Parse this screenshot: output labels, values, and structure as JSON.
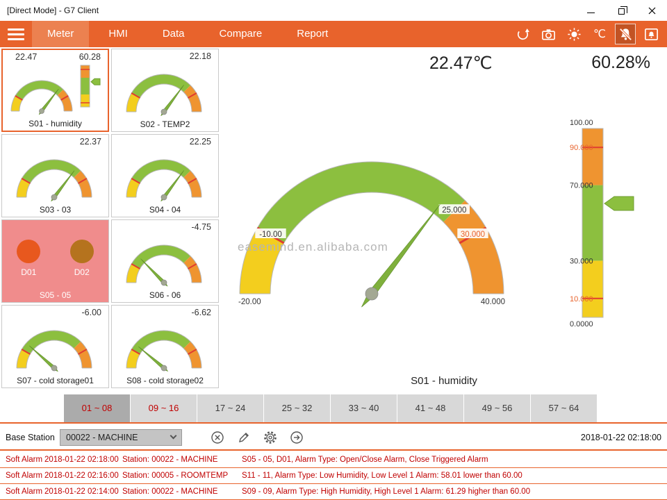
{
  "window": {
    "title": "[Direct Mode] - G7 Client"
  },
  "nav": {
    "tabs": [
      {
        "label": "Meter",
        "active": true
      },
      {
        "label": "HMI",
        "active": false
      },
      {
        "label": "Data",
        "active": false
      },
      {
        "label": "Compare",
        "active": false
      },
      {
        "label": "Report",
        "active": false
      }
    ],
    "celsius_label": "℃"
  },
  "colors": {
    "accent": "#E8632C",
    "gauge_green": "#8CBF3F",
    "gauge_yellow": "#F3CE1E",
    "gauge_orange": "#EF9430",
    "alarm_line": "#E03C31",
    "alarm_text": "#C00000"
  },
  "gauge_defaults": {
    "dial": {
      "min": -20,
      "max": 40,
      "segments": [
        {
          "from": -20,
          "to": -10,
          "color": "#F3CE1E"
        },
        {
          "from": -10,
          "to": 25,
          "color": "#8CBF3F"
        },
        {
          "from": 25,
          "to": 40,
          "color": "#EF9430"
        }
      ],
      "ticks": [
        -10,
        30
      ],
      "tick_color": "#E03C31",
      "needle_color": "#7FB03C",
      "needle_edge": "#5E8C2A",
      "hub_color": "#A3A893"
    },
    "bar": {
      "min": 0,
      "max": 100,
      "segments": [
        {
          "from": 0,
          "to": 30,
          "color": "#F3CE1E"
        },
        {
          "from": 30,
          "to": 70,
          "color": "#8CBF3F"
        },
        {
          "from": 70,
          "to": 100,
          "color": "#EF9430"
        }
      ],
      "ticks": [
        10,
        90
      ],
      "tick_color": "#E03C31",
      "pointer_color": "#8CBF3F",
      "pointer_edge": "#6F9E33"
    }
  },
  "meters": [
    {
      "id": "S01",
      "label": "S01 - humidity",
      "type": "dial-bar",
      "values": [
        "22.47",
        "60.28"
      ],
      "dial_value": 22.47,
      "bar_value": 60.28,
      "selected": true
    },
    {
      "id": "S02",
      "label": "S02 - TEMP2",
      "type": "dial",
      "values": [
        "22.18"
      ],
      "dial_value": 22.18,
      "selected": false
    },
    {
      "id": "S03",
      "label": "S03 - 03",
      "type": "dial",
      "values": [
        "22.37"
      ],
      "dial_value": 22.37,
      "selected": false
    },
    {
      "id": "S04",
      "label": "S04 - 04",
      "type": "dial",
      "values": [
        "22.25"
      ],
      "dial_value": 22.25,
      "selected": false
    },
    {
      "id": "S05",
      "label": "S05 - 05",
      "type": "digital",
      "background": "#F08C8C",
      "channels": [
        {
          "label": "D01",
          "color": "#E8581E"
        },
        {
          "label": "D02",
          "color": "#B5731E"
        }
      ],
      "selected": false
    },
    {
      "id": "S06",
      "label": "S06 - 06",
      "type": "dial",
      "values": [
        "-4.75"
      ],
      "dial_value": -4.75,
      "selected": false
    },
    {
      "id": "S07",
      "label": "S07 - cold storage01",
      "type": "dial",
      "values": [
        "-6.00"
      ],
      "dial_value": -6.0,
      "selected": false
    },
    {
      "id": "S08",
      "label": "S08 - cold storage02",
      "type": "dial",
      "values": [
        "-6.62"
      ],
      "dial_value": -6.62,
      "selected": false
    }
  ],
  "main": {
    "temp_display": "22.47℃",
    "humidity_display": "60.28%",
    "meter_label": "S01 - humidity",
    "watermark": "easemind.en.alibaba.com",
    "dial": {
      "value": 22.47,
      "labels": [
        {
          "v": -20,
          "text": "-20.00",
          "place": "end-left",
          "color": "#333333"
        },
        {
          "v": -10,
          "text": "-10.00",
          "place": "band",
          "color": "#333333"
        },
        {
          "v": 25,
          "text": "25.000",
          "place": "band",
          "color": "#333333"
        },
        {
          "v": 30,
          "text": "30.000",
          "place": "band",
          "color": "#E8632C"
        },
        {
          "v": 40,
          "text": "40.000",
          "place": "end-right",
          "color": "#333333"
        }
      ]
    },
    "bar": {
      "value": 60.28,
      "labels": [
        {
          "v": 100,
          "text": "100.00",
          "color": "#333333"
        },
        {
          "v": 90,
          "text": "90.000",
          "color": "#E8632C"
        },
        {
          "v": 70,
          "text": "70.000",
          "color": "#333333"
        },
        {
          "v": 30,
          "text": "30.000",
          "color": "#333333"
        },
        {
          "v": 10,
          "text": "10.000",
          "color": "#E8632C"
        },
        {
          "v": 0,
          "text": "0.0000",
          "color": "#333333"
        }
      ]
    }
  },
  "range_tabs": [
    {
      "label": "01 ~ 08",
      "active": true,
      "alert": true
    },
    {
      "label": "09 ~ 16",
      "active": false,
      "alert": true
    },
    {
      "label": "17 ~ 24",
      "active": false,
      "alert": false
    },
    {
      "label": "25 ~ 32",
      "active": false,
      "alert": false
    },
    {
      "label": "33 ~ 40",
      "active": false,
      "alert": false
    },
    {
      "label": "41 ~ 48",
      "active": false,
      "alert": false
    },
    {
      "label": "49 ~ 56",
      "active": false,
      "alert": false
    },
    {
      "label": "57 ~ 64",
      "active": false,
      "alert": false
    }
  ],
  "station_bar": {
    "label": "Base Station",
    "dropdown_value": "00022 - MACHINE",
    "timestamp": "2018-01-22 02:18:00"
  },
  "alarms": [
    {
      "type": "Soft Alarm",
      "time": "2018-01-22 02:18:00",
      "station": "Station: 00022 - MACHINE",
      "detail": "S05 - 05, D01, Alarm Type: Open/Close Alarm, Close Triggered Alarm"
    },
    {
      "type": "Soft Alarm",
      "time": "2018-01-22 02:16:00",
      "station": "Station: 00005 - ROOMTEMP",
      "detail": "S11 - 11, Alarm Type: Low Humidity, Low Level 1 Alarm: 58.01 lower than 60.00"
    },
    {
      "type": "Soft Alarm",
      "time": "2018-01-22 02:14:00",
      "station": "Station: 00022 - MACHINE",
      "detail": "S09 - 09, Alarm Type: High Humidity, High Level 1 Alarm: 61.29 higher than 60.00"
    }
  ]
}
